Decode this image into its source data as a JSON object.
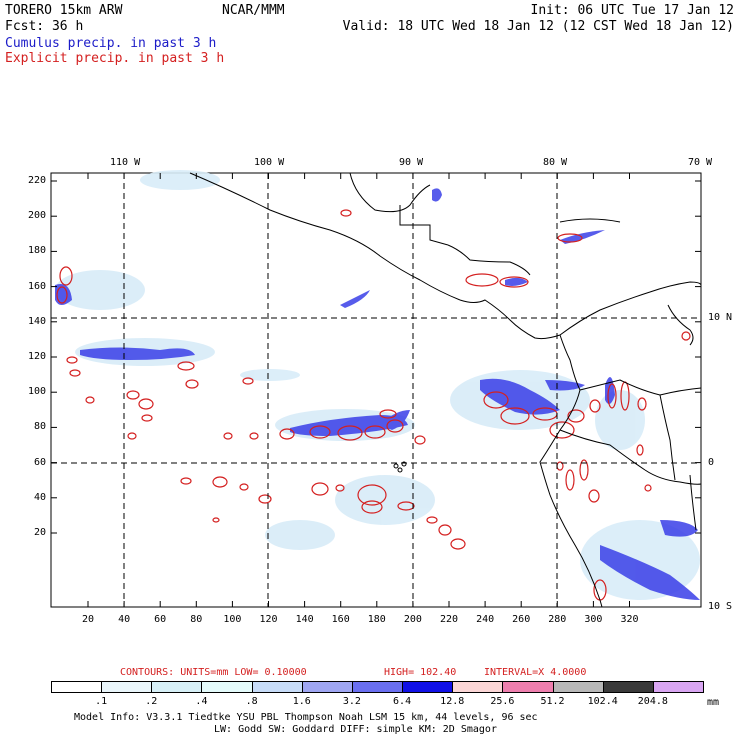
{
  "header": {
    "model": "TORERO  15km ARW",
    "org": "NCAR/MMM",
    "init": "Init: 06 UTC Tue 17 Jan 12",
    "fcst": "Fcst:   36 h",
    "valid": "Valid: 18 UTC Wed 18 Jan 12 (12 CST Wed 18 Jan 12)",
    "field1": "Cumulus precip. in past 3 h",
    "field2": "Explicit precip. in past 3 h"
  },
  "colors": {
    "field1": "#1c1cc8",
    "field2": "#d42020",
    "contour": "#d42020",
    "land_outline": "#000000"
  },
  "map": {
    "lon_labels": [
      "110 W",
      "100 W",
      "90 W",
      "80 W",
      "70 W"
    ],
    "lat_labels": [
      "10 N",
      "0",
      "10 S"
    ],
    "y_ticks": [
      "220",
      "200",
      "180",
      "160",
      "140",
      "120",
      "100",
      "80",
      "60",
      "40",
      "20"
    ],
    "x_ticks": [
      "20",
      "40",
      "60",
      "80",
      "100",
      "120",
      "140",
      "160",
      "180",
      "200",
      "220",
      "240",
      "260",
      "280",
      "300",
      "320"
    ]
  },
  "contour_info": {
    "units_label": "CONTOURS:  UNITS=mm  LOW= 0.10000",
    "high_label": "HIGH=  102.40",
    "interval_label": "INTERVAL=X  4.0000"
  },
  "colorbar": {
    "labels": [
      ".1",
      ".2",
      ".4",
      ".8",
      "1.6",
      "3.2",
      "6.4",
      "12.8",
      "25.6",
      "51.2",
      "102.4",
      "204.8"
    ],
    "unit": "mm",
    "colors": [
      "#ffffff",
      "#eaf6fb",
      "#d7f0f7",
      "#e4fbfb",
      "#c7dcf8",
      "#9fa6f2",
      "#6a6ff0",
      "#1010e6",
      "#fbd6d6",
      "#ee7fae",
      "#b8b8b8",
      "#3a3a3a",
      "#d9a6f2"
    ]
  },
  "footer": {
    "line1": "Model Info: V3.3.1     Tiedtke YSU PBL   Thompson     Noah LSM  15 km,   44 levels,   96 sec",
    "line2": "LW: Godd SW: Goddard DIFF: simple KM: 2D Smagor"
  }
}
